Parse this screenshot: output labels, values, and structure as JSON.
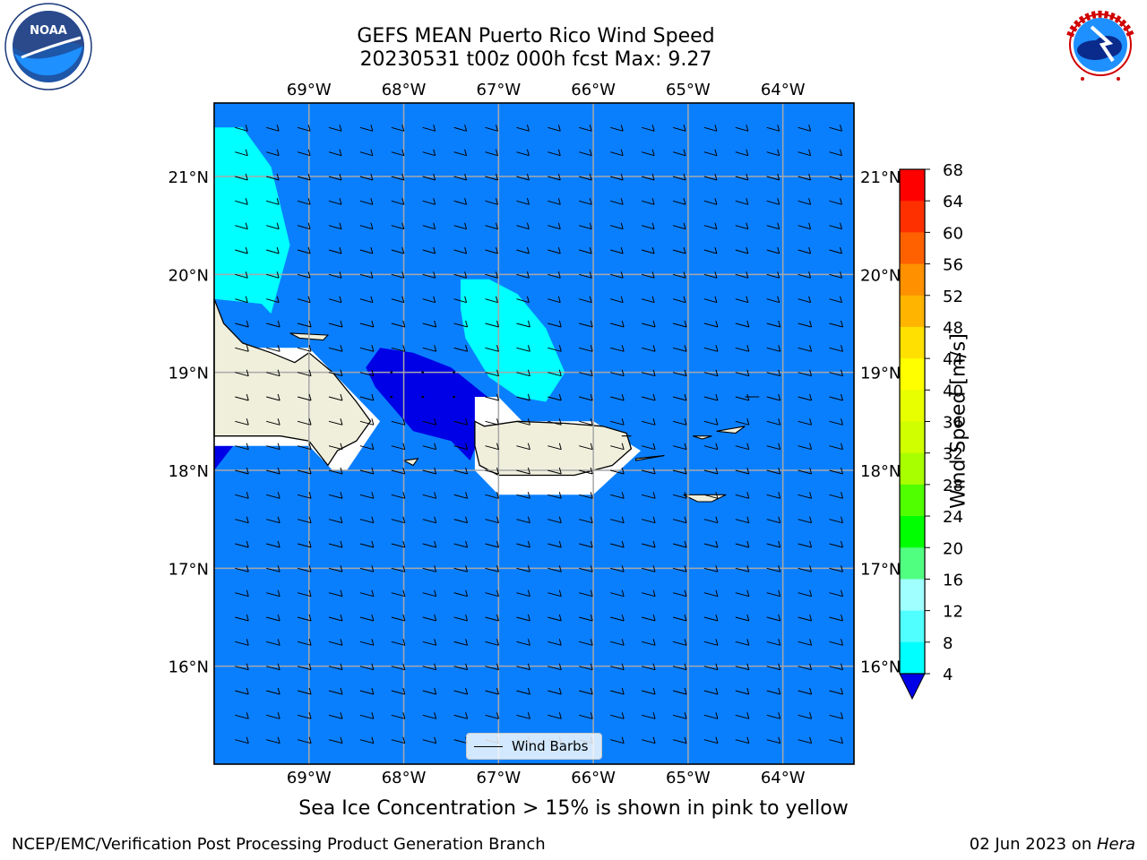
{
  "header": {
    "title_line1": "GEFS MEAN Puerto Rico Wind Speed",
    "title_line2": "20230531 t00z 000h fcst   Max: 9.27"
  },
  "logos": {
    "left": "noaa-logo",
    "left_text": "NOAA",
    "right": "nws-logo",
    "right_text": "NATIONAL WEATHER SERVICE"
  },
  "map": {
    "lon_labels": [
      "69°W",
      "68°W",
      "67°W",
      "66°W",
      "65°W",
      "64°W"
    ],
    "lat_labels": [
      "21°N",
      "20°N",
      "19°N",
      "18°N",
      "17°N",
      "16°N"
    ],
    "lon_values": [
      -69,
      -68,
      -67,
      -66,
      -65,
      -64
    ],
    "lat_values": [
      21,
      20,
      19,
      18,
      17,
      16
    ],
    "lon_range": [
      -70,
      -63.25
    ],
    "lat_range": [
      15,
      21.75
    ],
    "base_color": "#0a7ffe",
    "fill_colors": {
      "low_speed": "#0000e6",
      "mid_speed": "#00ffff",
      "land": "#efefdc",
      "land_mask": "#ffffff"
    },
    "wind_legend": "Wind Barbs"
  },
  "colorbar": {
    "label": "Wind Speed [m/s]",
    "ticks": [
      "68",
      "64",
      "60",
      "56",
      "52",
      "48",
      "44",
      "40",
      "36",
      "32",
      "28",
      "24",
      "20",
      "16",
      "12",
      "8",
      "4"
    ],
    "colors": [
      "#ff0000",
      "#ff3000",
      "#ff6000",
      "#ff9000",
      "#ffb400",
      "#ffe000",
      "#ffff00",
      "#e8ff00",
      "#d0ff00",
      "#a8ff00",
      "#50ff00",
      "#00ff00",
      "#50ff80",
      "#a0ffff",
      "#50ffff",
      "#00ffff",
      "#0a7ffe"
    ],
    "under_color": "#0000e6"
  },
  "caption": "Sea Ice Concentration > 15% is shown in pink to yellow",
  "footer": {
    "left": "NCEP/EMC/Verification Post Processing Product Generation Branch",
    "right_prefix": "02 Jun 2023 on ",
    "right_italic": "Hera"
  }
}
